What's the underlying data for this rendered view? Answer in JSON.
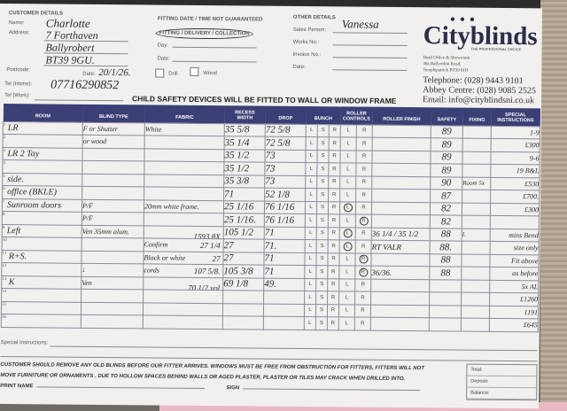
{
  "customer": {
    "heading": "CUSTOMER DETAILS",
    "name_label": "Name:",
    "name": "Charlotte",
    "address_label": "Address:",
    "address": [
      "7 Forthaven",
      "Ballyrobert",
      "BT39 9GU."
    ],
    "postcode_label": "Postcode:",
    "date_label": "Date:",
    "date": "20/1/26.",
    "tel_home_label": "Tel (Home):",
    "tel_home": "07716290852",
    "tel_work_label": "Tel (Work):"
  },
  "fitting": {
    "note": "FITTING DATE / TIME NOT GUARANTEED",
    "type": "FITTING / DELIVERY / COLLECTION",
    "day_label": "Day:",
    "date_label": "Date:",
    "drill_label": "Drill",
    "wood_label": "Wood"
  },
  "other": {
    "heading": "OTHER DETAILS",
    "sales_label": "Sales Person:",
    "sales": "Vanessa",
    "works_label": "Works No.:",
    "invoice_label": "Invoice No.:",
    "date_label": "Date:"
  },
  "company": {
    "name": "Cityblinds",
    "tagline": "THE PROFESSIONAL CHOICE",
    "address": [
      "Head Office & Showroom",
      "40a Ballyrobin Road,",
      "Templepatrick BT39 0JH"
    ],
    "telephone": "Telephone: (028) 9443 9101",
    "abbey": "Abbey Centre: (028) 9085 2525",
    "email": "Email: info@cityblindsni.co.uk",
    "brand_color": "#2b2d4a"
  },
  "warning": "CHILD SAFETY DEVICES WILL BE FITTED TO WALL OR WINDOW FRAME",
  "table": {
    "headers": {
      "room": "ROOM",
      "blind_type": "BLIND TYPE",
      "fabric": "FABRIC",
      "recess": "RECESS",
      "width": "WIDTH",
      "drop": "DROP",
      "bunch": "BUNCH",
      "roller_controls": "ROLLER CONTROLS",
      "roller_finish": "ROLLER FINISH",
      "safety": "SAFETY",
      "fixing": "FIXING",
      "special": "SPECIAL INSTRUCTIONS"
    },
    "rows": [
      {
        "n": "1",
        "room": "LR",
        "blind": "F or Shutter",
        "fabric": "White",
        "fabric_note": "",
        "width": "35 5/8",
        "drop": "72 5/8",
        "control": "",
        "finish": "",
        "safety": "89",
        "fixing": "",
        "special": "1-9"
      },
      {
        "n": "2",
        "room": "",
        "blind": "or wood",
        "fabric": "",
        "fabric_note": "",
        "width": "35 1/4",
        "drop": "72 5/8",
        "control": "",
        "finish": "",
        "safety": "89",
        "fixing": "",
        "special": "£300"
      },
      {
        "n": "3",
        "room": "LR 2 Tay",
        "blind": "",
        "fabric": "",
        "fabric_note": "",
        "width": "35 1/2",
        "drop": "73",
        "control": "",
        "finish": "",
        "safety": "89",
        "fixing": "",
        "special": "9-6"
      },
      {
        "n": "4",
        "room": "",
        "blind": "",
        "fabric": "",
        "fabric_note": "",
        "width": "35 1/2",
        "drop": "73",
        "control": "",
        "finish": "",
        "safety": "89",
        "fixing": "",
        "special": "19 B&L"
      },
      {
        "n": "5",
        "room": "side.",
        "blind": "",
        "fabric": "",
        "fabric_note": "",
        "width": "35 3/8",
        "drop": "73",
        "control": "",
        "finish": "",
        "safety": "90",
        "fixing": "Room 5x",
        "special": "£530"
      },
      {
        "n": "6",
        "room": "office (BKLE)",
        "blind": "",
        "fabric": "",
        "fabric_note": "",
        "width": "71",
        "drop": "52 1/8",
        "control": "",
        "finish": "",
        "safety": "87",
        "fixing": "",
        "special": "£700."
      },
      {
        "n": "7",
        "room": "Sunroom doors",
        "blind": "P/F",
        "fabric": "20mm white frame.",
        "fabric_note": "",
        "width": "25 1/16",
        "drop": "76 1/16",
        "control": "L",
        "finish": "",
        "safety": "82",
        "fixing": "",
        "special": "£300"
      },
      {
        "n": "8",
        "room": "",
        "blind": "P/F",
        "fabric": "",
        "fabric_note": "",
        "width": "25 1/16.",
        "drop": "76 1/16",
        "control": "R",
        "finish": "",
        "safety": "82",
        "fixing": "",
        "special": ""
      },
      {
        "n": "9",
        "room": "Left",
        "blind": "Ven 35mm alum.",
        "fabric": "",
        "fabric_note": "1593 8X",
        "width": "105 1/2",
        "drop": "71",
        "control": "L",
        "finish": "36 1/4 / 35 1/2",
        "safety": "88",
        "fixing": "L",
        "special": "mins Bend"
      },
      {
        "n": "10",
        "room": "",
        "blind": "",
        "fabric": "Confirm",
        "fabric_note": "27 1/4",
        "width": "27",
        "drop": "71.",
        "control": "L",
        "finish": "RT VALR",
        "safety": "88.",
        "fixing": "",
        "special": "size only"
      },
      {
        "n": "11",
        "room": "R+S.",
        "blind": "",
        "fabric": "Black or white",
        "fabric_note": "27",
        "width": "27",
        "drop": "71",
        "control": "R",
        "finish": "",
        "safety": "88",
        "fixing": "",
        "special": "Fit above"
      },
      {
        "n": "12",
        "room": "",
        "blind": "↓",
        "fabric": "cords",
        "fabric_note": "107 5/8.",
        "width": "105 3/8",
        "drop": "71",
        "control": "R",
        "finish": "36/36.",
        "safety": "88",
        "fixing": "",
        "special": "as before"
      },
      {
        "n": "13",
        "room": "K",
        "blind": "Ven",
        "fabric": "",
        "fabric_note": "70 1/2 vol",
        "width": "69 1/8",
        "drop": "49.",
        "control": "",
        "finish": "",
        "safety": "",
        "fixing": "",
        "special": "5x AL"
      },
      {
        "n": "14",
        "room": "",
        "blind": "",
        "fabric": "",
        "fabric_note": "",
        "width": "",
        "drop": "",
        "control": "",
        "finish": "",
        "safety": "",
        "fixing": "",
        "special": "£1260"
      },
      {
        "n": "15",
        "room": "",
        "blind": "",
        "fabric": "",
        "fabric_note": "",
        "width": "",
        "drop": "",
        "control": "",
        "finish": "",
        "safety": "",
        "fixing": "",
        "special": "1191"
      },
      {
        "n": "16",
        "room": "",
        "blind": "",
        "fabric": "",
        "fabric_note": "",
        "width": "",
        "drop": "",
        "control": "",
        "finish": "",
        "safety": "",
        "fixing": "",
        "special": "£645"
      }
    ]
  },
  "special_instructions_label": "Special Instructions:",
  "footer": {
    "text1": "CUSTOMER SHOULD REMOVE ANY OLD BLINDS BEFORE OUR FITTER ARRIVES. WINDOWS MUST BE FREE FROM OBSTRUCTION FOR FITTERS, FITTERS WILL NOT",
    "text2": "MOVE FURNITURE OR ORNAMENTS . DUE TO HOLLOW SPACES BEHIND WALLS OR AGED PLASTER, PLASTER OR TILES MAY CRACK WHEN DRILLED INTO.",
    "print_name": "PRINT NAME",
    "sign": "SIGN",
    "total": "Total:",
    "deposit": "Deposit:",
    "balance": "Balance:"
  }
}
